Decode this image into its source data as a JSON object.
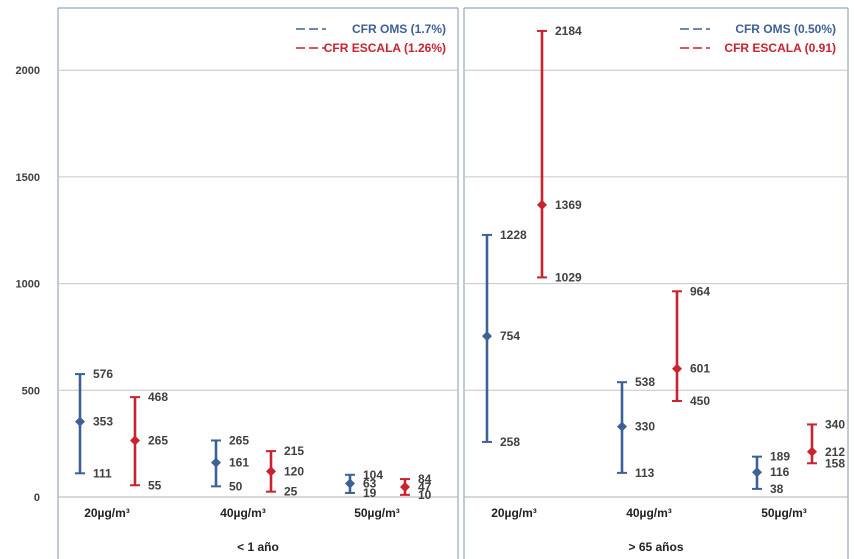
{
  "chart_data": {
    "type": "error-bar",
    "ylim": [
      0,
      2300
    ],
    "yticks": [
      "0",
      "500",
      "1000",
      "1500",
      "2000"
    ],
    "grid": true,
    "colors": {
      "oms": "#3d6197",
      "escala": "#c8232f"
    },
    "panels": [
      {
        "group_label": "< 1 año",
        "categories": [
          "20µg/m³",
          "40µg/m³",
          "50µg/m³"
        ],
        "legend": [
          "CFR OMS (1.7%)",
          "CFR ESCALA (1.26%)"
        ],
        "series": [
          {
            "name": "CFR OMS (1.7%)",
            "color_key": "oms",
            "points": [
              {
                "low": 111,
                "mid": 353,
                "high": 576
              },
              {
                "low": 50,
                "mid": 161,
                "high": 265
              },
              {
                "low": 19,
                "mid": 63,
                "high": 104
              }
            ]
          },
          {
            "name": "CFR ESCALA (1.26%)",
            "color_key": "escala",
            "points": [
              {
                "low": 55,
                "mid": 265,
                "high": 468
              },
              {
                "low": 25,
                "mid": 120,
                "high": 215
              },
              {
                "low": 10,
                "mid": 47,
                "high": 84
              }
            ]
          }
        ]
      },
      {
        "group_label": "> 65 años",
        "categories": [
          "20µg/m³",
          "40µg/m³",
          "50µg/m³"
        ],
        "legend": [
          "CFR OMS (0.50%)",
          "CFR ESCALA (0.91)"
        ],
        "series": [
          {
            "name": "CFR OMS (0.50%)",
            "color_key": "oms",
            "points": [
              {
                "low": 258,
                "mid": 754,
                "high": 1228
              },
              {
                "low": 113,
                "mid": 330,
                "high": 538
              },
              {
                "low": 38,
                "mid": 116,
                "high": 189
              }
            ]
          },
          {
            "name": "CFR ESCALA (0.91)",
            "color_key": "escala",
            "points": [
              {
                "low": 1029,
                "mid": 1369,
                "high": 2184
              },
              {
                "low": 450,
                "mid": 601,
                "high": 964
              },
              {
                "low": 158,
                "mid": 212,
                "high": 340
              }
            ]
          }
        ]
      }
    ]
  }
}
